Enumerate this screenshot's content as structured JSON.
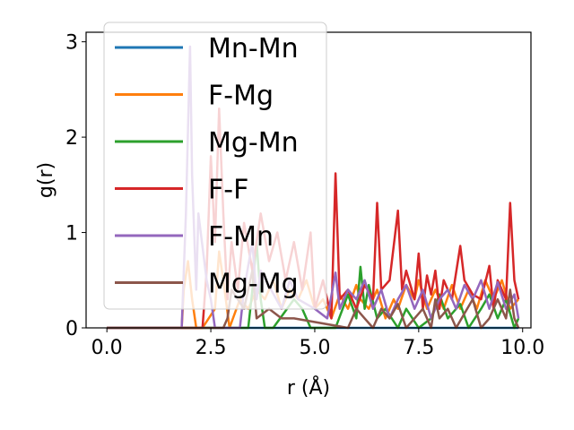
{
  "chart_data": {
    "type": "line",
    "xlabel": "r (Å)",
    "ylabel": "g(r)",
    "xlim": [
      -0.5,
      10.2
    ],
    "ylim": [
      0,
      3.1
    ],
    "x_ticks": [
      0.0,
      2.5,
      5.0,
      7.5,
      10.0
    ],
    "x_tick_labels": [
      "0.0",
      "2.5",
      "5.0",
      "7.5",
      "10.0"
    ],
    "y_ticks": [
      0,
      1,
      2,
      3
    ],
    "y_tick_labels": [
      "0",
      "1",
      "2",
      "3"
    ],
    "grid": false,
    "legend_position": "upper-left",
    "series": [
      {
        "name": "Mn-Mn",
        "color": "#1f77b4",
        "x": [
          0,
          1.8,
          1.85,
          2.0,
          2.6,
          2.75,
          2.9,
          3.3,
          3.45,
          3.6,
          3.9,
          4.05,
          4.2,
          4.5,
          4.65,
          4.8,
          5.0,
          5.3,
          5.45,
          5.6,
          5.9,
          6.05,
          6.2,
          6.5,
          6.65,
          6.8,
          7.1,
          7.25,
          7.4,
          7.7,
          7.85,
          8.0,
          8.3,
          8.45,
          8.6,
          8.9,
          9.05,
          9.2,
          9.5,
          9.65,
          9.8,
          9.9
        ],
        "y": [
          0,
          0,
          0,
          0,
          0,
          0,
          0,
          0,
          0,
          0,
          0,
          0,
          0,
          0,
          0,
          0,
          0,
          0,
          0,
          0,
          0,
          0,
          0,
          0,
          0,
          0,
          0,
          0,
          0,
          0,
          0,
          0,
          0,
          0,
          0,
          0,
          0,
          0,
          0,
          0,
          0,
          0
        ]
      },
      {
        "name": "F-Mg",
        "color": "#ff7f0e",
        "x": [
          0,
          1.8,
          1.85,
          1.95,
          2.05,
          2.15,
          2.3,
          2.6,
          2.7,
          2.8,
          2.95,
          3.2,
          3.4,
          3.6,
          3.8,
          4.0,
          4.2,
          4.4,
          4.6,
          4.8,
          5.0,
          5.2,
          5.4,
          5.6,
          5.8,
          6.0,
          6.1,
          6.3,
          6.5,
          6.7,
          6.9,
          7.0,
          7.2,
          7.4,
          7.5,
          7.7,
          7.9,
          8.1,
          8.3,
          8.5,
          8.7,
          8.9,
          9.1,
          9.3,
          9.5,
          9.7,
          9.9
        ],
        "y": [
          0,
          0,
          0.4,
          0.7,
          0.3,
          0,
          0,
          0.2,
          0.8,
          0.5,
          0,
          0.3,
          0.2,
          0.4,
          0.3,
          0.5,
          0.2,
          0.4,
          0.3,
          0.5,
          0.2,
          0.3,
          0.1,
          0.35,
          0.2,
          0.45,
          0.3,
          0.2,
          0.4,
          0.1,
          0.3,
          0.2,
          0.45,
          0.3,
          0.5,
          0.2,
          0.4,
          0.2,
          0.45,
          0.2,
          0.4,
          0.2,
          0.5,
          0.3,
          0.5,
          0.2,
          0.3
        ]
      },
      {
        "name": "Mg-Mn",
        "color": "#2ca02c",
        "x": [
          0,
          3.4,
          3.5,
          3.6,
          3.7,
          3.8,
          4.0,
          4.5,
          4.7,
          4.9,
          5.5,
          5.8,
          6.0,
          6.1,
          6.2,
          6.3,
          6.5,
          6.7,
          7.0,
          7.2,
          7.5,
          7.8,
          8.0,
          8.2,
          8.5,
          8.7,
          9.0,
          9.2,
          9.4,
          9.6,
          9.8,
          9.9
        ],
        "y": [
          0,
          0,
          0.4,
          0.9,
          0.3,
          0,
          0,
          0.3,
          0.2,
          0,
          0,
          0.35,
          0.1,
          0.64,
          0.2,
          0.45,
          0.1,
          0.2,
          0,
          0.2,
          0,
          0.1,
          0.35,
          0.1,
          0.25,
          0,
          0.2,
          0.35,
          0.1,
          0.3,
          0,
          0.1
        ]
      },
      {
        "name": "F-F",
        "color": "#d62728",
        "x": [
          0,
          2.3,
          2.4,
          2.5,
          2.6,
          2.7,
          2.8,
          2.9,
          3.0,
          3.15,
          3.3,
          3.5,
          3.7,
          3.9,
          4.1,
          4.3,
          4.5,
          4.7,
          4.9,
          5.0,
          5.2,
          5.4,
          5.5,
          5.6,
          5.8,
          6.0,
          6.2,
          6.4,
          6.5,
          6.6,
          6.8,
          7.0,
          7.1,
          7.2,
          7.4,
          7.5,
          7.6,
          7.7,
          7.8,
          7.9,
          8.0,
          8.1,
          8.3,
          8.5,
          8.6,
          8.8,
          9.0,
          9.2,
          9.3,
          9.4,
          9.6,
          9.7,
          9.8,
          9.9
        ],
        "y": [
          0,
          0,
          0.6,
          1.8,
          0.9,
          2.3,
          1.2,
          0.3,
          0.9,
          0.4,
          1.1,
          0.6,
          1.2,
          0.7,
          1.0,
          0.5,
          0.9,
          0.4,
          1.0,
          0.2,
          0.5,
          0.1,
          1.62,
          0.3,
          0.4,
          0.2,
          0.45,
          0.3,
          1.31,
          0.4,
          0.5,
          1.23,
          0.4,
          0.6,
          0.3,
          0.78,
          0.2,
          0.55,
          0.35,
          0.6,
          0.2,
          0.5,
          0.3,
          0.86,
          0.5,
          0.35,
          0.3,
          0.65,
          0.2,
          0.5,
          0.3,
          1.31,
          0.5,
          0.3
        ]
      },
      {
        "name": "F-Mn",
        "color": "#9467bd",
        "x": [
          0,
          1.8,
          1.9,
          2.0,
          2.05,
          2.15,
          2.2,
          2.4,
          2.5,
          2.6,
          3.2,
          3.3,
          3.5,
          3.6,
          3.7,
          4.2,
          4.4,
          4.6,
          5.0,
          5.3,
          5.5,
          5.6,
          5.8,
          6.0,
          6.2,
          6.4,
          6.6,
          6.8,
          7.0,
          7.2,
          7.4,
          7.6,
          7.8,
          8.0,
          8.2,
          8.4,
          8.6,
          8.8,
          9.0,
          9.2,
          9.4,
          9.6,
          9.8,
          9.9
        ],
        "y": [
          0,
          0,
          1.2,
          2.95,
          1.6,
          0.4,
          1.2,
          0.5,
          0.3,
          0,
          0,
          0.4,
          0.9,
          0.3,
          0.6,
          0.2,
          0.5,
          0.3,
          0.2,
          0.1,
          0.58,
          0.2,
          0.4,
          0.3,
          0.5,
          0.2,
          0.4,
          0.1,
          0.3,
          0.45,
          0.2,
          0.4,
          0.1,
          0.3,
          0.4,
          0.2,
          0.45,
          0.3,
          0.5,
          0.2,
          0.48,
          0.2,
          0.35,
          0.1
        ]
      },
      {
        "name": "Mg-Mg",
        "color": "#8c564b",
        "x": [
          0,
          2.8,
          2.9,
          3.0,
          3.3,
          3.5,
          3.6,
          3.9,
          4.2,
          4.5,
          5.8,
          6.0,
          6.2,
          6.4,
          6.6,
          6.8,
          7.0,
          7.2,
          7.4,
          7.6,
          7.8,
          7.9,
          8.0,
          8.2,
          8.4,
          8.6,
          8.8,
          9.0,
          9.2,
          9.4,
          9.6,
          9.7,
          9.8,
          9.9
        ],
        "y": [
          0,
          0,
          0.1,
          0.4,
          0.2,
          0.6,
          0.1,
          0.2,
          0.1,
          0.1,
          0,
          0.2,
          0.1,
          0,
          0.2,
          0.1,
          0.25,
          0,
          0.1,
          0.2,
          0,
          0.3,
          0.1,
          0.2,
          0,
          0.15,
          0.3,
          0,
          0.1,
          0.3,
          0.1,
          0.4,
          0.1,
          0
        ]
      }
    ]
  }
}
